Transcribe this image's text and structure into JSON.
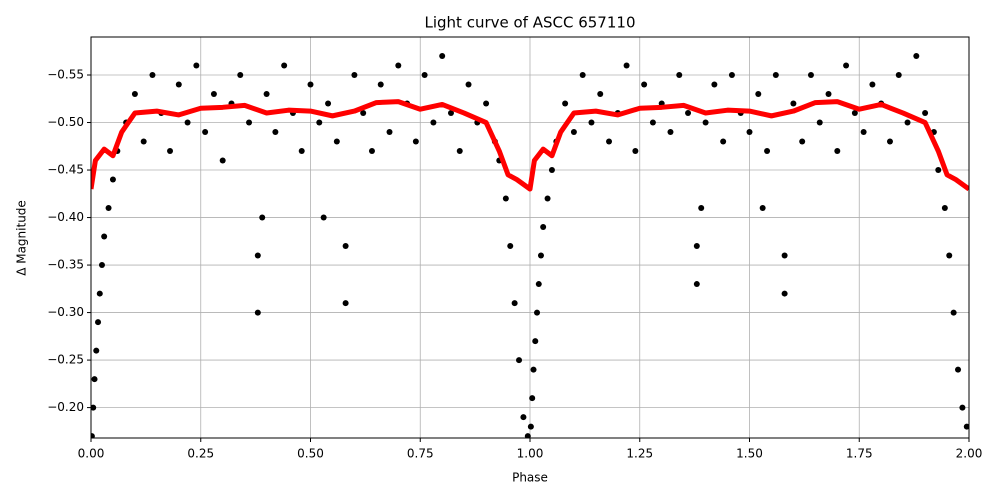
{
  "chart_data": {
    "type": "scatter",
    "title": "Light curve of ASCC 657110",
    "xlabel": "Phase",
    "ylabel": "Δ Magnitude",
    "xlim": [
      0,
      2
    ],
    "ylim": [
      -0.168,
      -0.59
    ],
    "xticks": [
      {
        "value": 0,
        "label": "0.00"
      },
      {
        "value": 0.25,
        "label": "0.25"
      },
      {
        "value": 0.5,
        "label": "0.50"
      },
      {
        "value": 0.75,
        "label": "0.75"
      },
      {
        "value": 1,
        "label": "1.00"
      },
      {
        "value": 1.25,
        "label": "1.25"
      },
      {
        "value": 1.5,
        "label": "1.50"
      },
      {
        "value": 1.75,
        "label": "1.75"
      },
      {
        "value": 2,
        "label": "2.00"
      }
    ],
    "yticks": [
      {
        "value": -0.55,
        "label": "−0.55"
      },
      {
        "value": -0.5,
        "label": "−0.50"
      },
      {
        "value": -0.45,
        "label": "−0.45"
      },
      {
        "value": -0.4,
        "label": "−0.40"
      },
      {
        "value": -0.35,
        "label": "−0.35"
      },
      {
        "value": -0.3,
        "label": "−0.30"
      },
      {
        "value": -0.25,
        "label": "−0.25"
      },
      {
        "value": -0.2,
        "label": "−0.20"
      }
    ],
    "grid": true,
    "series": [
      {
        "type": "scatter",
        "color": "#000000",
        "x": [
          0.002,
          0.005,
          0.008,
          0.012,
          0.016,
          0.02,
          0.025,
          0.03,
          0.04,
          0.05,
          0.06,
          0.08,
          0.1,
          0.12,
          0.14,
          0.16,
          0.18,
          0.2,
          0.22,
          0.24,
          0.26,
          0.28,
          0.3,
          0.32,
          0.34,
          0.36,
          0.38,
          0.38,
          0.39,
          0.4,
          0.42,
          0.44,
          0.46,
          0.48,
          0.5,
          0.52,
          0.53,
          0.54,
          0.56,
          0.58,
          0.58,
          0.6,
          0.62,
          0.64,
          0.66,
          0.68,
          0.7,
          0.72,
          0.74,
          0.76,
          0.78,
          0.8,
          0.82,
          0.84,
          0.86,
          0.88,
          0.9,
          0.92,
          0.93,
          0.945,
          0.955,
          0.965,
          0.975,
          0.985,
          0.995,
          1.002,
          1.005,
          1.008,
          1.012,
          1.016,
          1.02,
          1.025,
          1.03,
          1.04,
          1.05,
          1.06,
          1.08,
          1.1,
          1.12,
          1.14,
          1.16,
          1.18,
          1.2,
          1.22,
          1.24,
          1.26,
          1.28,
          1.3,
          1.32,
          1.34,
          1.36,
          1.38,
          1.38,
          1.39,
          1.4,
          1.42,
          1.44,
          1.46,
          1.48,
          1.5,
          1.52,
          1.53,
          1.54,
          1.56,
          1.58,
          1.58,
          1.6,
          1.62,
          1.64,
          1.66,
          1.68,
          1.7,
          1.72,
          1.74,
          1.76,
          1.78,
          1.8,
          1.82,
          1.84,
          1.86,
          1.88,
          1.9,
          1.92,
          1.93,
          1.945,
          1.955,
          1.965,
          1.975,
          1.985,
          1.995
        ],
        "values": [
          -0.17,
          -0.2,
          -0.23,
          -0.26,
          -0.29,
          -0.32,
          -0.35,
          -0.38,
          -0.41,
          -0.44,
          -0.47,
          -0.5,
          -0.53,
          -0.48,
          -0.55,
          -0.51,
          -0.47,
          -0.54,
          -0.5,
          -0.56,
          -0.49,
          -0.53,
          -0.46,
          -0.52,
          -0.55,
          -0.5,
          -0.3,
          -0.36,
          -0.4,
          -0.53,
          -0.49,
          -0.56,
          -0.51,
          -0.47,
          -0.54,
          -0.5,
          -0.4,
          -0.52,
          -0.48,
          -0.31,
          -0.37,
          -0.55,
          -0.51,
          -0.47,
          -0.54,
          -0.49,
          -0.56,
          -0.52,
          -0.48,
          -0.55,
          -0.5,
          -0.57,
          -0.51,
          -0.47,
          -0.54,
          -0.5,
          -0.52,
          -0.48,
          -0.46,
          -0.42,
          -0.37,
          -0.31,
          -0.25,
          -0.19,
          -0.17,
          -0.18,
          -0.21,
          -0.24,
          -0.27,
          -0.3,
          -0.33,
          -0.36,
          -0.39,
          -0.42,
          -0.45,
          -0.48,
          -0.52,
          -0.49,
          -0.55,
          -0.5,
          -0.53,
          -0.48,
          -0.51,
          -0.56,
          -0.47,
          -0.54,
          -0.5,
          -0.52,
          -0.49,
          -0.55,
          -0.51,
          -0.33,
          -0.37,
          -0.41,
          -0.5,
          -0.54,
          -0.48,
          -0.55,
          -0.51,
          -0.49,
          -0.53,
          -0.41,
          -0.47,
          -0.55,
          -0.32,
          -0.36,
          -0.52,
          -0.48,
          -0.55,
          -0.5,
          -0.53,
          -0.47,
          -0.56,
          -0.51,
          -0.49,
          -0.54,
          -0.52,
          -0.48,
          -0.55,
          -0.5,
          -0.57,
          -0.51,
          -0.49,
          -0.45,
          -0.41,
          -0.36,
          -0.3,
          -0.24,
          -0.2,
          -0.18
        ]
      },
      {
        "type": "line",
        "color": "#ff0000",
        "x": [
          0,
          0.01,
          0.03,
          0.05,
          0.07,
          0.1,
          0.15,
          0.2,
          0.25,
          0.3,
          0.35,
          0.4,
          0.45,
          0.5,
          0.55,
          0.6,
          0.65,
          0.7,
          0.75,
          0.8,
          0.85,
          0.9,
          0.93,
          0.95,
          0.97,
          1.0,
          1.01,
          1.03,
          1.05,
          1.07,
          1.1,
          1.15,
          1.2,
          1.25,
          1.3,
          1.35,
          1.4,
          1.45,
          1.5,
          1.55,
          1.6,
          1.65,
          1.7,
          1.75,
          1.8,
          1.85,
          1.9,
          1.93,
          1.95,
          1.97,
          2.0
        ],
        "values": [
          -0.43,
          -0.46,
          -0.472,
          -0.465,
          -0.49,
          -0.51,
          -0.512,
          -0.508,
          -0.515,
          -0.516,
          -0.518,
          -0.51,
          -0.513,
          -0.512,
          -0.507,
          -0.512,
          -0.521,
          -0.522,
          -0.514,
          -0.519,
          -0.51,
          -0.5,
          -0.47,
          -0.445,
          -0.44,
          -0.43,
          -0.46,
          -0.472,
          -0.465,
          -0.49,
          -0.51,
          -0.512,
          -0.508,
          -0.515,
          -0.516,
          -0.518,
          -0.51,
          -0.513,
          -0.512,
          -0.507,
          -0.512,
          -0.521,
          -0.522,
          -0.514,
          -0.519,
          -0.51,
          -0.5,
          -0.47,
          -0.445,
          -0.44,
          -0.43
        ]
      }
    ]
  }
}
